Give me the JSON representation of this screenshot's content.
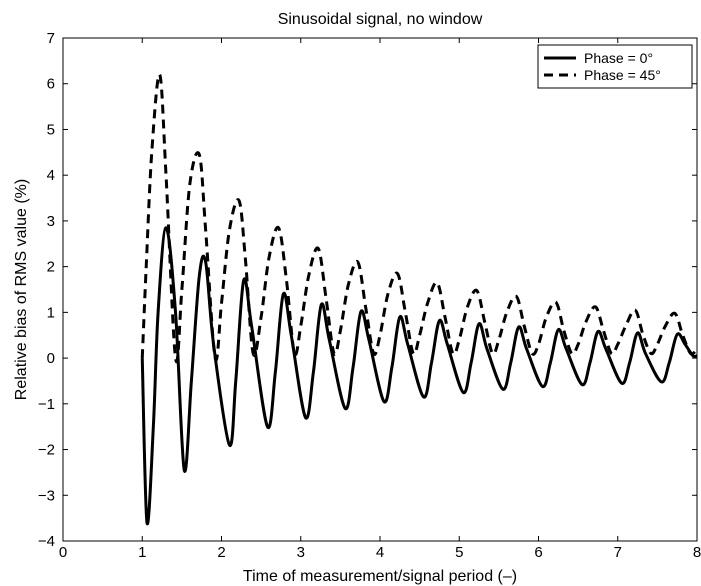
{
  "chart_data": {
    "type": "line",
    "title": "Sinusoidal signal, no window",
    "xlabel": "Time of measurement/signal period (–)",
    "ylabel": "Relative bias of RMS value (%)",
    "xlim": [
      0,
      8
    ],
    "ylim": [
      -4,
      7
    ],
    "xticks": [
      "0",
      "1",
      "2",
      "3",
      "4",
      "5",
      "6",
      "7",
      "8"
    ],
    "yticks": [
      "−4",
      "−3",
      "−2",
      "−1",
      "0",
      "1",
      "2",
      "3",
      "4",
      "5",
      "6",
      "7"
    ],
    "grid": true,
    "legend_position": "top-right",
    "series": [
      {
        "name": "Phase = 0°",
        "style": "solid",
        "color": "#000000",
        "points": [
          [
            1.0,
            0.0
          ],
          [
            1.06,
            -3.6
          ],
          [
            1.14,
            -1.5
          ],
          [
            1.2,
            1.0
          ],
          [
            1.3,
            2.85
          ],
          [
            1.42,
            1.0
          ],
          [
            1.53,
            -2.45
          ],
          [
            1.62,
            -0.5
          ],
          [
            1.72,
            1.8
          ],
          [
            1.8,
            2.1
          ],
          [
            1.9,
            0.3
          ],
          [
            2.1,
            -1.9
          ],
          [
            2.18,
            -0.5
          ],
          [
            2.28,
            1.7
          ],
          [
            2.38,
            0.7
          ],
          [
            2.58,
            -1.5
          ],
          [
            2.68,
            -0.3
          ],
          [
            2.78,
            1.4
          ],
          [
            2.88,
            0.5
          ],
          [
            3.06,
            -1.3
          ],
          [
            3.16,
            -0.3
          ],
          [
            3.26,
            1.17
          ],
          [
            3.36,
            0.4
          ],
          [
            3.56,
            -1.1
          ],
          [
            3.66,
            -0.2
          ],
          [
            3.76,
            1.02
          ],
          [
            3.86,
            0.4
          ],
          [
            4.05,
            -0.95
          ],
          [
            4.15,
            -0.2
          ],
          [
            4.25,
            0.9
          ],
          [
            4.35,
            0.3
          ],
          [
            4.55,
            -0.85
          ],
          [
            4.65,
            -0.1
          ],
          [
            4.75,
            0.82
          ],
          [
            4.85,
            0.3
          ],
          [
            5.05,
            -0.75
          ],
          [
            5.15,
            -0.1
          ],
          [
            5.25,
            0.75
          ],
          [
            5.35,
            0.2
          ],
          [
            5.55,
            -0.68
          ],
          [
            5.65,
            -0.1
          ],
          [
            5.75,
            0.68
          ],
          [
            5.85,
            0.2
          ],
          [
            6.05,
            -0.62
          ],
          [
            6.15,
            -0.1
          ],
          [
            6.25,
            0.62
          ],
          [
            6.35,
            0.2
          ],
          [
            6.55,
            -0.58
          ],
          [
            6.65,
            -0.1
          ],
          [
            6.75,
            0.58
          ],
          [
            6.85,
            0.2
          ],
          [
            7.05,
            -0.55
          ],
          [
            7.15,
            -0.1
          ],
          [
            7.25,
            0.55
          ],
          [
            7.35,
            0.1
          ],
          [
            7.55,
            -0.52
          ],
          [
            7.65,
            -0.1
          ],
          [
            7.75,
            0.52
          ],
          [
            7.85,
            0.3
          ],
          [
            7.95,
            0.05
          ],
          [
            8.0,
            0.05
          ]
        ]
      },
      {
        "name": "Phase = 45°",
        "style": "dashed",
        "color": "#000000",
        "points": [
          [
            1.0,
            0.0
          ],
          [
            1.05,
            2.0
          ],
          [
            1.12,
            4.5
          ],
          [
            1.22,
            6.2
          ],
          [
            1.3,
            4.0
          ],
          [
            1.42,
            0.0
          ],
          [
            1.5,
            1.5
          ],
          [
            1.6,
            3.8
          ],
          [
            1.72,
            4.45
          ],
          [
            1.8,
            2.8
          ],
          [
            1.92,
            0.0
          ],
          [
            2.0,
            1.2
          ],
          [
            2.1,
            2.8
          ],
          [
            2.22,
            3.45
          ],
          [
            2.3,
            2.2
          ],
          [
            2.4,
            0.1
          ],
          [
            2.5,
            0.9
          ],
          [
            2.6,
            2.2
          ],
          [
            2.72,
            2.85
          ],
          [
            2.82,
            1.7
          ],
          [
            2.92,
            0.1
          ],
          [
            3.0,
            0.7
          ],
          [
            3.1,
            1.8
          ],
          [
            3.22,
            2.4
          ],
          [
            3.32,
            1.3
          ],
          [
            3.42,
            0.1
          ],
          [
            3.5,
            0.6
          ],
          [
            3.6,
            1.6
          ],
          [
            3.72,
            2.1
          ],
          [
            3.82,
            1.1
          ],
          [
            3.92,
            0.1
          ],
          [
            4.0,
            0.5
          ],
          [
            4.1,
            1.4
          ],
          [
            4.22,
            1.85
          ],
          [
            4.32,
            1.0
          ],
          [
            4.42,
            0.1
          ],
          [
            4.5,
            0.5
          ],
          [
            4.6,
            1.2
          ],
          [
            4.72,
            1.65
          ],
          [
            4.82,
            0.9
          ],
          [
            4.92,
            0.1
          ],
          [
            5.0,
            0.4
          ],
          [
            5.1,
            1.1
          ],
          [
            5.22,
            1.48
          ],
          [
            5.32,
            0.8
          ],
          [
            5.42,
            0.1
          ],
          [
            5.5,
            0.4
          ],
          [
            5.6,
            1.0
          ],
          [
            5.72,
            1.35
          ],
          [
            5.82,
            0.7
          ],
          [
            5.92,
            0.1
          ],
          [
            6.0,
            0.3
          ],
          [
            6.1,
            0.9
          ],
          [
            6.22,
            1.22
          ],
          [
            6.32,
            0.6
          ],
          [
            6.42,
            0.1
          ],
          [
            6.5,
            0.3
          ],
          [
            6.6,
            0.8
          ],
          [
            6.72,
            1.12
          ],
          [
            6.82,
            0.6
          ],
          [
            6.92,
            0.1
          ],
          [
            7.0,
            0.3
          ],
          [
            7.1,
            0.7
          ],
          [
            7.22,
            1.05
          ],
          [
            7.32,
            0.5
          ],
          [
            7.42,
            0.1
          ],
          [
            7.5,
            0.3
          ],
          [
            7.6,
            0.7
          ],
          [
            7.72,
            0.98
          ],
          [
            7.82,
            0.5
          ],
          [
            7.92,
            0.1
          ],
          [
            8.0,
            0.2
          ]
        ]
      }
    ]
  }
}
